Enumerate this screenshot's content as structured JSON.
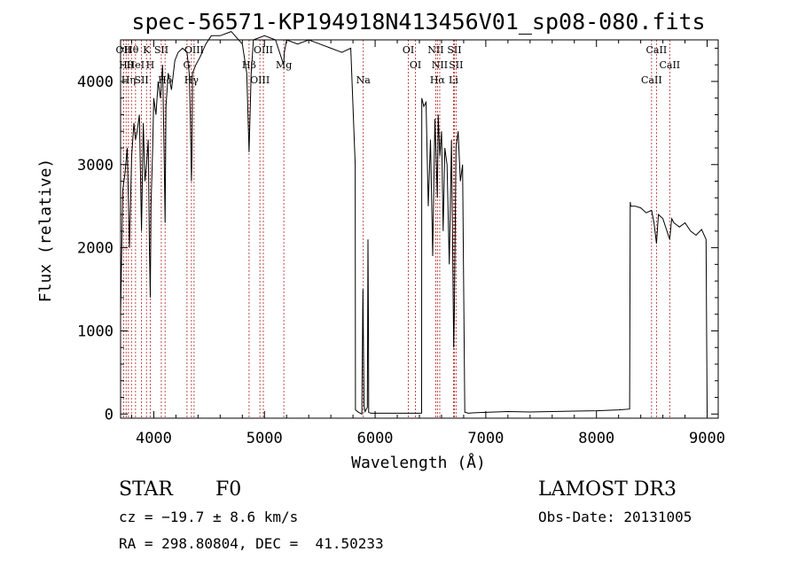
{
  "chart_data": {
    "type": "line",
    "title": "spec-56571-KP194918N413456V01_sp08-080.fits",
    "xlabel": "Wavelength (Å)",
    "ylabel": "Flux (relative)",
    "xlim": [
      3700,
      9100
    ],
    "ylim": [
      -50,
      4500
    ],
    "x_ticks": [
      "4000",
      "5000",
      "6000",
      "7000",
      "8000",
      "9000"
    ],
    "y_ticks": [
      "0",
      "1000",
      "2000",
      "3000",
      "4000"
    ],
    "grid": false,
    "series": [
      {
        "x": [
          3700,
          3720,
          3740,
          3760,
          3780,
          3800,
          3820,
          3835,
          3850,
          3870,
          3889,
          3905,
          3920,
          3935,
          3950,
          3960,
          3968,
          3975,
          3990,
          4000,
          4020,
          4040,
          4060,
          4080,
          4095,
          4102,
          4110,
          4130,
          4160,
          4190,
          4220,
          4260,
          4300,
          4320,
          4330,
          4340,
          4345,
          4350,
          4380,
          4420,
          4470,
          4520,
          4600,
          4700,
          4800,
          4840,
          4861,
          4880,
          4900,
          5000,
          5100,
          5173,
          5180,
          5200,
          5300,
          5400,
          5500,
          5600,
          5700,
          5780,
          5820,
          5822,
          5850,
          5880,
          5890,
          5900,
          5910,
          5930,
          5935,
          5940,
          5942,
          5960,
          6000,
          6100,
          6200,
          6300,
          6400,
          6420,
          6422,
          6440,
          6460,
          6480,
          6500,
          6520,
          6540,
          6563,
          6570,
          6585,
          6600,
          6615,
          6630,
          6650,
          6670,
          6690,
          6710,
          6716,
          6731,
          6750,
          6770,
          6790,
          6810,
          6830,
          6840,
          6900,
          7000,
          7200,
          7400,
          7600,
          7800,
          8000,
          8200,
          8300,
          8305,
          8310,
          8350,
          8400,
          8450,
          8498,
          8520,
          8542,
          8560,
          8600,
          8662,
          8680,
          8700,
          8750,
          8800,
          8850,
          8900,
          8950,
          8990,
          9000
        ],
        "y": [
          1200,
          2700,
          2900,
          3200,
          2000,
          3100,
          3500,
          3300,
          3400,
          3600,
          2200,
          3500,
          2800,
          3000,
          3300,
          2000,
          1400,
          2500,
          3200,
          3800,
          3600,
          4000,
          3800,
          4200,
          3000,
          2300,
          3700,
          4100,
          3900,
          4250,
          4350,
          4400,
          4350,
          4100,
          3600,
          2800,
          3100,
          4100,
          4200,
          4300,
          4450,
          4550,
          4550,
          4600,
          4450,
          4100,
          3150,
          4100,
          4500,
          4550,
          4500,
          4200,
          4350,
          4500,
          4450,
          4500,
          4450,
          4400,
          4350,
          4400,
          3000,
          50,
          20,
          0,
          1500,
          100,
          30,
          80,
          2100,
          1000,
          20,
          10,
          10,
          10,
          10,
          10,
          10,
          10,
          3800,
          3700,
          3750,
          2500,
          3300,
          1900,
          3550,
          2600,
          3600,
          3100,
          3400,
          2200,
          3200,
          3000,
          1800,
          3300,
          800,
          1200,
          3200,
          3400,
          2800,
          3000,
          20,
          15,
          10,
          15,
          20,
          30,
          25,
          30,
          35,
          40,
          50,
          60,
          2550,
          2500,
          2500,
          2480,
          2420,
          2450,
          2300,
          2050,
          2400,
          2350,
          2100,
          2350,
          2300,
          2250,
          2300,
          2200,
          2150,
          2220,
          2100,
          20
        ]
      }
    ],
    "line_labels": [
      {
        "wl": 3727,
        "text": "OII"
      },
      {
        "wl": 3750,
        "text": "Hθ"
      },
      {
        "wl": 3771,
        "text": "Hη"
      },
      {
        "wl": 3798,
        "text": "Hθ"
      },
      {
        "wl": 3835,
        "text": "HeI"
      },
      {
        "wl": 3889,
        "text": "SII"
      },
      {
        "wl": 3934,
        "text": "K"
      },
      {
        "wl": 3968,
        "text": "H"
      },
      {
        "wl": 4102,
        "text": "Hδ"
      },
      {
        "wl": 4068,
        "text": "SII"
      },
      {
        "wl": 4300,
        "text": "G"
      },
      {
        "wl": 4340,
        "text": "Hγ"
      },
      {
        "wl": 4364,
        "text": "OIII"
      },
      {
        "wl": 4861,
        "text": "Hβ"
      },
      {
        "wl": 4959,
        "text": "OIII"
      },
      {
        "wl": 4990,
        "text": "OIII"
      },
      {
        "wl": 5175,
        "text": "Mg"
      },
      {
        "wl": 5893,
        "text": "Na"
      },
      {
        "wl": 6300,
        "text": "OI"
      },
      {
        "wl": 6364,
        "text": "OI"
      },
      {
        "wl": 6563,
        "text": "Hα"
      },
      {
        "wl": 6548,
        "text": "NII"
      },
      {
        "wl": 6584,
        "text": "NII"
      },
      {
        "wl": 6708,
        "text": "Li"
      },
      {
        "wl": 6716,
        "text": "SII"
      },
      {
        "wl": 6731,
        "text": "SII"
      },
      {
        "wl": 8498,
        "text": "CaII"
      },
      {
        "wl": 8542,
        "text": "CaII"
      },
      {
        "wl": 8662,
        "text": "CaII"
      }
    ]
  },
  "info": {
    "object_class": "STAR",
    "subclass": "F0",
    "survey": "LAMOST DR3",
    "cz": "cz = −19.7 ± 8.6 km/s",
    "obs_date": "Obs-Date: 20131005",
    "coords": "RA = 298.80804, DEC =  41.50233"
  },
  "colors": {
    "spectrum": "#000000",
    "line_marker": "#b22222"
  }
}
